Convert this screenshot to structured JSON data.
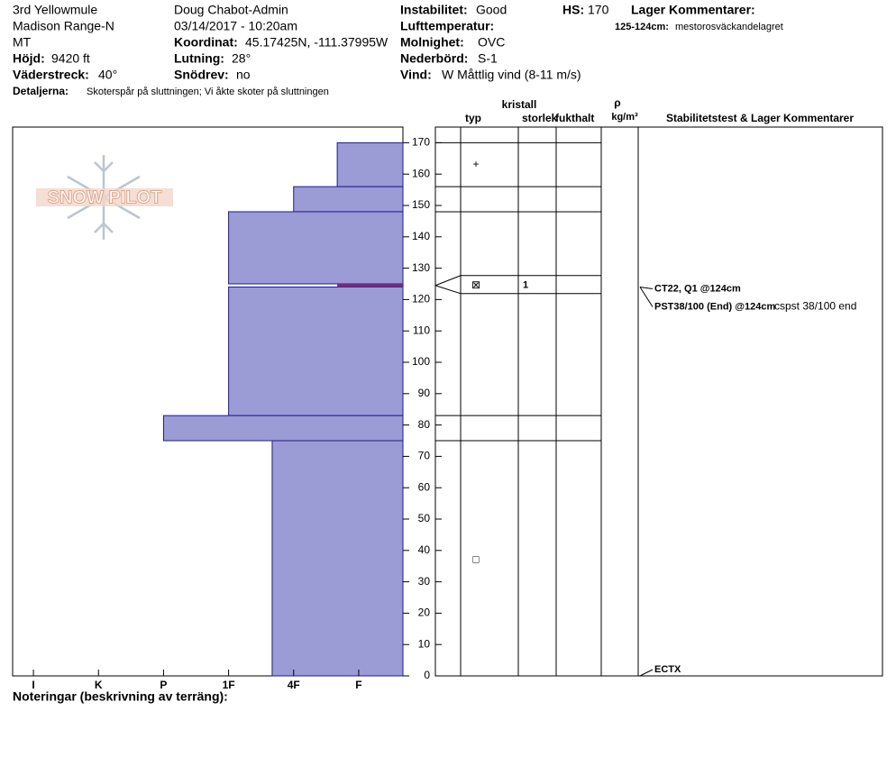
{
  "header": {
    "location": "3rd Yellowmule",
    "range": "Madison Range-N",
    "state": "MT",
    "observer": "Doug Chabot-Admin",
    "datetime": "03/14/2017 - 10:20am",
    "elevation": {
      "label": "Höjd:",
      "value": "9420 ft"
    },
    "aspect": {
      "label": "Väderstreck:",
      "value": "40°"
    },
    "coordinates": {
      "label": "Koordinat:",
      "value": "45.17425N, -111.37995W"
    },
    "slope": {
      "label": "Lutning:",
      "value": "28°"
    },
    "wind_loading": {
      "label": "Snödrev:",
      "value": "no"
    },
    "stability": {
      "label": "Instabilitet:",
      "value": "Good"
    },
    "air_temperature": {
      "label": "Lufttemperatur:"
    },
    "sky": {
      "label": "Molnighet:",
      "value": "OVC"
    },
    "precipitation": {
      "label": "Nederbörd:",
      "value": "S-1"
    },
    "wind": {
      "label": "Vind:",
      "value": "W Måttlig vind (8-11 m/s)"
    },
    "hs": {
      "label": "HS:",
      "value": 170
    },
    "details": {
      "label": "Detaljerna:",
      "value": "Skoterspår på sluttningen; Vi åkte skoter på sluttningen"
    },
    "layer_comments": {
      "title": "Lager Kommentarer:",
      "items": [
        {
          "label": "125-124cm:",
          "text": "mestorosväckandelagret"
        }
      ]
    }
  },
  "table_headers": {
    "type": "typ",
    "crystal": "kristall",
    "size": "storlek",
    "moisture": "fukthalt",
    "density": "ρ",
    "density_unit": "kg/m³",
    "tests": "Stabilitetstest & Lager Kommentarer"
  },
  "footer": "Noteringar (beskrivning av terräng):",
  "logo": "SNOW PILOT",
  "chart_data": {
    "type": "snow-profile",
    "ylim": [
      0,
      175
    ],
    "yticks": [
      0,
      10,
      20,
      30,
      40,
      50,
      60,
      70,
      80,
      90,
      100,
      110,
      120,
      130,
      140,
      150,
      160,
      170
    ],
    "xlim": [
      -0.32,
      5.68
    ],
    "xticks": [
      {
        "value": 0,
        "label": "I"
      },
      {
        "value": 1,
        "label": "K"
      },
      {
        "value": 2,
        "label": "P"
      },
      {
        "value": 3,
        "label": "1F"
      },
      {
        "value": 4,
        "label": "4F"
      },
      {
        "value": 5,
        "label": "F"
      }
    ],
    "color": "#9b9bd6",
    "layers": [
      {
        "top": 170,
        "bottom": 156,
        "hardness": 4.67
      },
      {
        "top": 156,
        "bottom": 148,
        "hardness": 4
      },
      {
        "top": 148,
        "bottom": 125,
        "hardness": 3
      },
      {
        "top": 124,
        "bottom": 83,
        "hardness": 3
      },
      {
        "top": 83,
        "bottom": 75,
        "hardness": 2
      },
      {
        "top": 75,
        "bottom": 0,
        "hardness": 3.67
      }
    ],
    "weak_layers": [
      {
        "top": 125,
        "bottom": 124,
        "hardness": 4.67,
        "color": "#7a2a78"
      }
    ],
    "grains": [
      {
        "height": 163,
        "symbol": "+"
      },
      {
        "height": 124.5,
        "symbol": "⊠",
        "size": 1
      },
      {
        "height": 37,
        "symbol": "□"
      }
    ],
    "tests": [
      {
        "height": 124,
        "label": "CT22, Q1 @124cm"
      },
      {
        "height": 124,
        "label": "PST38/100 (End) @124cm",
        "note": "cspst 38/100 end"
      },
      {
        "height": 0,
        "label": "ECTX"
      }
    ]
  }
}
